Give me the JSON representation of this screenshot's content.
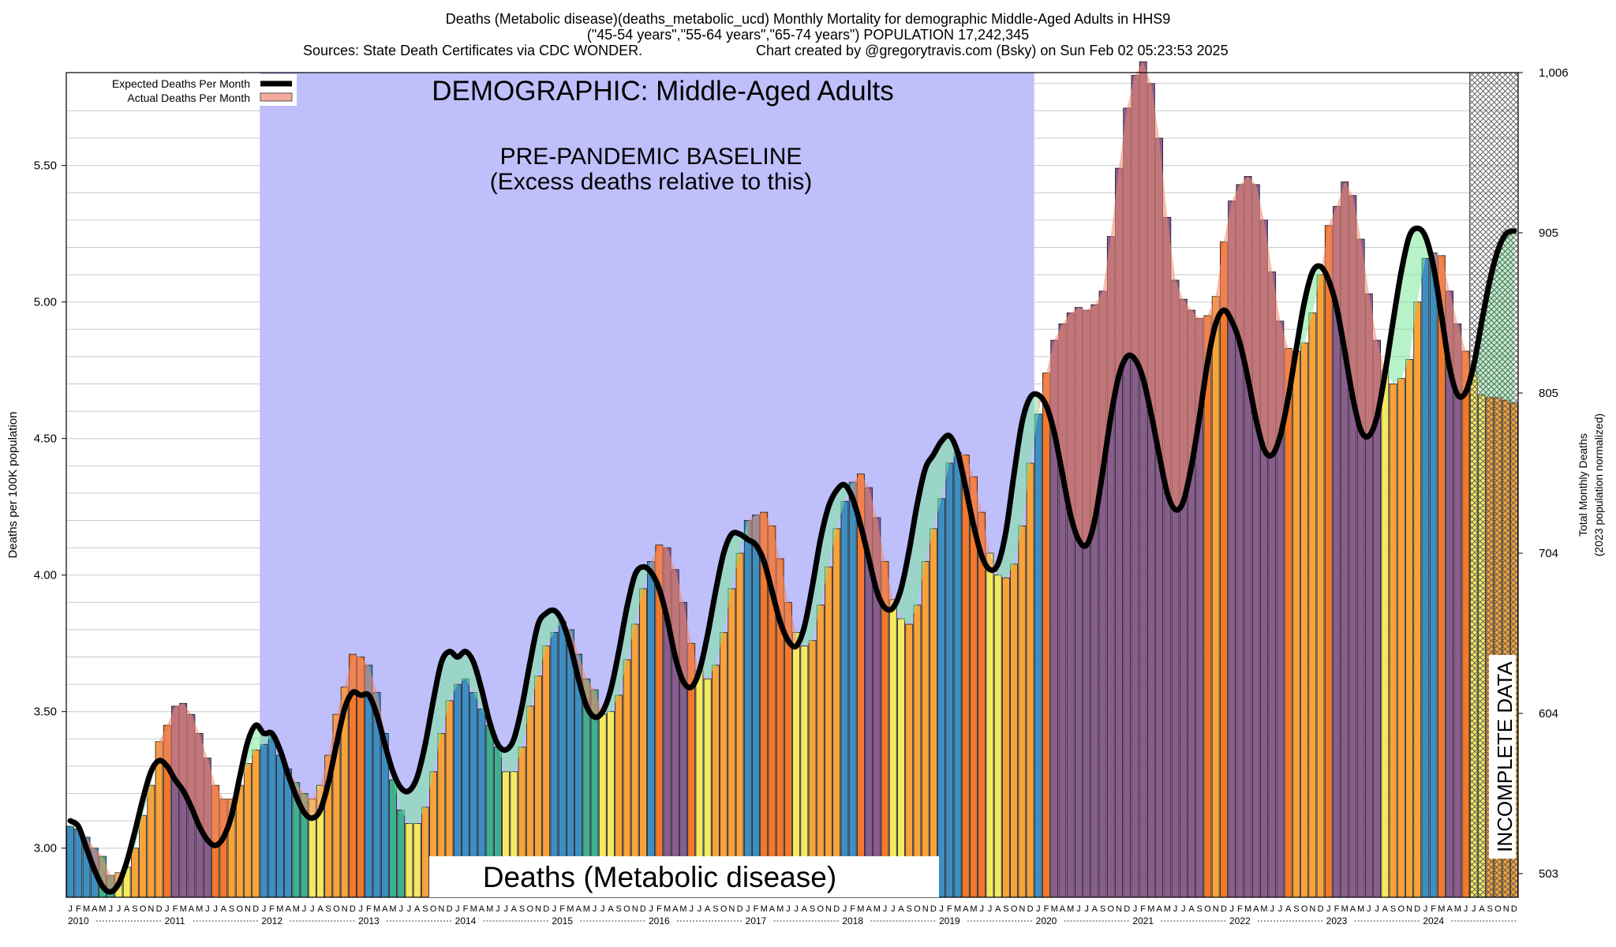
{
  "header": {
    "line1": "Deaths (Metabolic disease)(deaths_metabolic_ucd) Monthly Mortality for demographic Middle-Aged Adults in HHS9",
    "line2": "(\"45-54 years\",\"55-64 years\",\"65-74 years\") POPULATION 17,242,345",
    "line3_left": "Sources: State Death Certificates via CDC WONDER.",
    "line3_right": "Chart created by @gregorytravis.com (Bsky) on Sun Feb 02 05:23:53 2025"
  },
  "colors": {
    "baseline_region": "#bfbffc",
    "expected_line": "#000000",
    "excess_fill": "#f08a6e",
    "deficit_fill": "#7ee89a",
    "incomplete_hatch": "#555555",
    "bar_orange": "#f7a33a",
    "bar_yellow": "#f4e95f",
    "bar_blue": "#3d8fc2",
    "bar_teal": "#3fb08f",
    "bar_purple": "#8a5d8f",
    "bar_deep_orange": "#f2792b"
  },
  "chart_data": {
    "type": "bar",
    "title": "DEMOGRAPHIC: Middle-Aged Adults",
    "baseline_label": "PRE-PANDEMIC BASELINE",
    "baseline_sublabel": "(Excess deaths relative to this)",
    "bottom_label": "Deaths (Metabolic disease)",
    "incomplete_label": "INCOMPLETE DATA",
    "ylabel": "Deaths per 100K population",
    "ylabel_right": "Total Monthly Deaths",
    "ylabel_right_sub": "(2023 population normalized)",
    "ylim": [
      2.82,
      5.84
    ],
    "yticks": [
      "3.00",
      "3.50",
      "4.00",
      "4.50",
      "5.00",
      "5.50"
    ],
    "yticks_right": [
      "503",
      "604",
      "704",
      "805",
      "905",
      "1,006"
    ],
    "grid": true,
    "legend_placement": "top-left",
    "legend": [
      "Expected Deaths Per Month",
      "Actual Deaths Per Month"
    ],
    "month_letters": [
      "J",
      "F",
      "M",
      "A",
      "M",
      "J",
      "J",
      "A",
      "S",
      "O",
      "N",
      "D"
    ],
    "years": [
      "2010",
      "2011",
      "2012",
      "2013",
      "2014",
      "2015",
      "2016",
      "2017",
      "2018",
      "2019",
      "2020",
      "2021",
      "2022",
      "2023",
      "2024"
    ],
    "baseline_period": [
      "2012-01",
      "2019-12"
    ],
    "incomplete_period": [
      "2024-07",
      "2024-12"
    ],
    "actual": [
      [
        3.08,
        3.07,
        3.04,
        3.0,
        2.97,
        2.9,
        2.91,
        2.93,
        3.0,
        3.12,
        3.23,
        3.39
      ],
      [
        3.45,
        3.52,
        3.53,
        3.49,
        3.42,
        3.33,
        3.23,
        3.18,
        3.18,
        3.23,
        3.31,
        3.36
      ],
      [
        3.38,
        3.41,
        3.34,
        3.29,
        3.24,
        3.2,
        3.18,
        3.23,
        3.34,
        3.49,
        3.59,
        3.71
      ],
      [
        3.7,
        3.67,
        3.57,
        3.42,
        3.25,
        3.14,
        3.09,
        3.09,
        3.15,
        3.28,
        3.42,
        3.54
      ],
      [
        3.6,
        3.62,
        3.57,
        3.51,
        3.45,
        3.37,
        3.28,
        3.28,
        3.37,
        3.52,
        3.63,
        3.74
      ],
      [
        3.79,
        3.83,
        3.8,
        3.71,
        3.62,
        3.58,
        3.49,
        3.5,
        3.56,
        3.69,
        3.82,
        3.95
      ],
      [
        4.05,
        4.11,
        4.1,
        4.02,
        3.9,
        3.75,
        3.65,
        3.62,
        3.67,
        3.79,
        3.95,
        4.08
      ],
      [
        4.2,
        4.22,
        4.23,
        4.18,
        4.06,
        3.9,
        3.79,
        3.74,
        3.76,
        3.89,
        4.03,
        4.17
      ],
      [
        4.27,
        4.34,
        4.37,
        4.32,
        4.21,
        4.05,
        3.91,
        3.84,
        3.82,
        3.89,
        4.05,
        4.17
      ],
      [
        4.28,
        4.41,
        4.45,
        4.44,
        4.36,
        4.23,
        4.08,
        4.0,
        3.99,
        4.04,
        4.18,
        4.41
      ],
      [
        4.59,
        4.74,
        4.86,
        4.92,
        4.96,
        4.98,
        4.97,
        4.99,
        5.04,
        5.24,
        5.49,
        5.71
      ],
      [
        5.83,
        5.88,
        5.8,
        5.6,
        5.31,
        5.08,
        5.01,
        4.97,
        4.94,
        4.95,
        5.02,
        5.22
      ],
      [
        5.37,
        5.43,
        5.46,
        5.43,
        5.3,
        5.11,
        4.93,
        4.83,
        4.82,
        4.85,
        4.96,
        5.1
      ],
      [
        5.28,
        5.35,
        5.44,
        5.39,
        5.23,
        5.03,
        4.86,
        4.75,
        4.7,
        4.72,
        4.79,
        5.0
      ],
      [
        5.16,
        5.18,
        5.17,
        5.04,
        4.92,
        4.82,
        4.75,
        4.66,
        4.65,
        4.65,
        4.64,
        4.63
      ]
    ],
    "expected": [
      [
        3.1,
        3.08,
        3.0,
        2.92,
        2.86,
        2.84,
        2.87,
        2.95,
        3.06,
        3.18,
        3.28,
        3.32
      ],
      [
        3.3,
        3.25,
        3.21,
        3.15,
        3.08,
        3.03,
        3.01,
        3.04,
        3.12,
        3.26,
        3.39,
        3.45
      ],
      [
        3.42,
        3.42,
        3.36,
        3.27,
        3.19,
        3.13,
        3.11,
        3.14,
        3.24,
        3.38,
        3.51,
        3.57
      ],
      [
        3.56,
        3.56,
        3.49,
        3.38,
        3.28,
        3.22,
        3.21,
        3.26,
        3.38,
        3.54,
        3.68,
        3.72
      ],
      [
        3.7,
        3.72,
        3.68,
        3.58,
        3.46,
        3.38,
        3.36,
        3.4,
        3.52,
        3.68,
        3.82,
        3.86
      ],
      [
        3.87,
        3.83,
        3.74,
        3.62,
        3.52,
        3.48,
        3.5,
        3.58,
        3.72,
        3.88,
        4.0,
        4.03
      ],
      [
        4.01,
        3.95,
        3.84,
        3.7,
        3.61,
        3.59,
        3.65,
        3.78,
        3.94,
        4.08,
        4.15,
        4.15
      ],
      [
        4.13,
        4.11,
        4.05,
        3.94,
        3.83,
        3.76,
        3.74,
        3.81,
        3.96,
        4.13,
        4.25,
        4.31
      ],
      [
        4.33,
        4.28,
        4.18,
        4.06,
        3.94,
        3.88,
        3.88,
        3.95,
        4.09,
        4.26,
        4.39,
        4.44
      ],
      [
        4.49,
        4.51,
        4.45,
        4.32,
        4.18,
        4.07,
        4.02,
        4.04,
        4.16,
        4.37,
        4.56,
        4.65
      ],
      [
        4.66,
        4.62,
        4.52,
        4.37,
        4.22,
        4.13,
        4.11,
        4.2,
        4.38,
        4.58,
        4.73,
        4.8
      ],
      [
        4.79,
        4.72,
        4.59,
        4.44,
        4.3,
        4.24,
        4.27,
        4.4,
        4.58,
        4.78,
        4.92,
        4.97
      ],
      [
        4.93,
        4.85,
        4.72,
        4.57,
        4.46,
        4.44,
        4.51,
        4.65,
        4.83,
        5.0,
        5.11,
        5.13
      ],
      [
        5.08,
        4.98,
        4.82,
        4.65,
        4.53,
        4.51,
        4.58,
        4.74,
        4.93,
        5.11,
        5.24,
        5.27
      ],
      [
        5.24,
        5.13,
        4.95,
        4.76,
        4.66,
        4.67,
        4.77,
        4.93,
        5.08,
        5.19,
        5.25,
        5.26
      ]
    ]
  }
}
